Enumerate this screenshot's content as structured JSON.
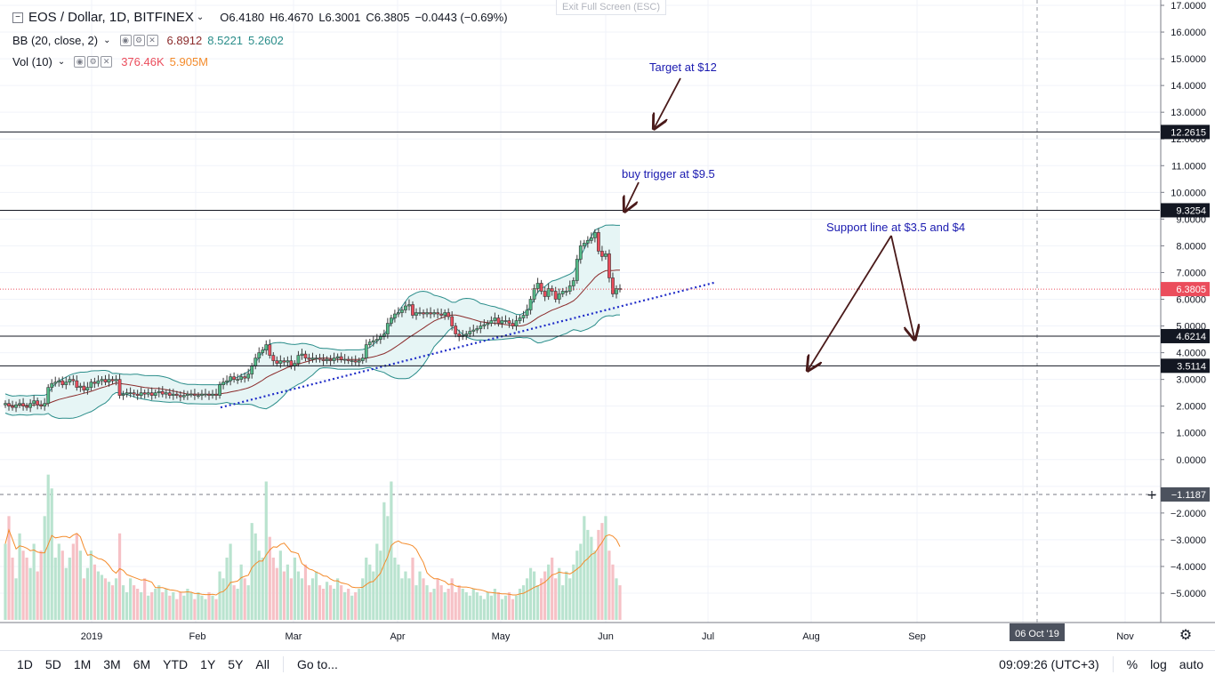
{
  "header": {
    "symbol_title": "EOS / Dollar, 1D, BITFINEX",
    "open": "O6.4180",
    "high": "H6.4670",
    "low": "L6.3001",
    "close": "C6.3805",
    "change": "−0.0443 (−0.69%)",
    "bb_label": "BB (20, close, 2)",
    "bb_values": [
      "6.8912",
      "8.5221",
      "5.2602"
    ],
    "vol_label": "Vol (10)",
    "vol_values": [
      "376.46K",
      "5.905M"
    ]
  },
  "exit_fullscreen": "Exit Full Screen (ESC)",
  "toolbar": {
    "ranges": [
      "1D",
      "5D",
      "1M",
      "3M",
      "6M",
      "YTD",
      "1Y",
      "5Y",
      "All"
    ],
    "goto": "Go to...",
    "clock": "09:09:26 (UTC+3)",
    "percent": "%",
    "log": "log",
    "auto": "auto"
  },
  "colors": {
    "up": "#53b987",
    "down": "#eb4d5c",
    "bb_fill": "#e6f5f5",
    "bb_band": "#2a8d8a",
    "bb_basis": "#8b2b2b",
    "trend": "#1f2cc8",
    "annotation": "#1a1ab0",
    "vol_ma": "#f48b2b"
  },
  "chart_data": {
    "type": "candlestick",
    "ylim": [
      -5.6,
      17.0
    ],
    "y_ticks": [
      "17.0000",
      "16.0000",
      "15.0000",
      "14.0000",
      "13.0000",
      "12.0000",
      "11.0000",
      "10.0000",
      "9.0000",
      "8.0000",
      "7.0000",
      "6.0000",
      "5.0000",
      "4.0000",
      "3.0000",
      "2.0000",
      "1.0000",
      "0.0000",
      "−2.0000",
      "−3.0000",
      "−4.0000",
      "−5.0000"
    ],
    "x_ticks": [
      "2019",
      "Feb",
      "Mar",
      "Apr",
      "May",
      "Jun",
      "Jul",
      "Aug",
      "Sep",
      "Nov"
    ],
    "x_highlight": "06 Oct '19",
    "crosshair_price": "−1.1187",
    "last_price": "6.3805",
    "levels": [
      {
        "label": "12.2615",
        "value": 12.26
      },
      {
        "label": "9.3254",
        "value": 9.33
      },
      {
        "label": "4.6214",
        "value": 4.62
      },
      {
        "label": "3.5114",
        "value": 3.51
      }
    ],
    "annotations": [
      "Target at $12",
      "buy trigger at $9.5",
      "Support line at $3.5 and $4"
    ],
    "closes": [
      2.1,
      2.0,
      1.95,
      2.05,
      2.1,
      2.0,
      1.95,
      2.1,
      2.2,
      2.05,
      2.0,
      2.1,
      2.7,
      2.85,
      2.9,
      2.95,
      2.8,
      2.9,
      3.0,
      2.95,
      2.7,
      2.75,
      2.6,
      2.7,
      2.9,
      2.85,
      2.95,
      3.0,
      2.9,
      3.0,
      2.95,
      3.0,
      2.4,
      2.45,
      2.5,
      2.5,
      2.45,
      2.4,
      2.5,
      2.45,
      2.5,
      2.4,
      2.5,
      2.55,
      2.45,
      2.5,
      2.4,
      2.45,
      2.4,
      2.35,
      2.4,
      2.45,
      2.45,
      2.4,
      2.4,
      2.45,
      2.45,
      2.4,
      2.45,
      2.4,
      2.8,
      2.9,
      2.95,
      3.1,
      3.0,
      3.0,
      3.1,
      3.05,
      3.2,
      3.5,
      3.8,
      4.0,
      4.1,
      4.3,
      3.9,
      3.7,
      3.6,
      3.7,
      3.65,
      3.7,
      3.5,
      3.6,
      3.9,
      3.95,
      3.8,
      3.75,
      3.8,
      3.8,
      3.75,
      3.7,
      3.75,
      3.7,
      3.8,
      3.85,
      3.75,
      3.75,
      3.7,
      3.7,
      3.65,
      3.7,
      3.8,
      4.3,
      4.4,
      4.45,
      4.5,
      4.6,
      4.7,
      5.1,
      5.3,
      5.45,
      5.5,
      5.6,
      5.75,
      5.8,
      5.4,
      5.5,
      5.5,
      5.45,
      5.5,
      5.45,
      5.5,
      5.45,
      5.4,
      5.5,
      5.35,
      5.0,
      4.7,
      4.6,
      4.65,
      4.7,
      4.8,
      4.85,
      4.9,
      5.0,
      5.05,
      5.1,
      5.2,
      5.3,
      5.1,
      5.2,
      5.2,
      5.1,
      5.0,
      5.2,
      5.3,
      5.4,
      5.6,
      6.0,
      6.4,
      6.6,
      6.3,
      6.1,
      6.4,
      6.3,
      6.0,
      6.2,
      6.3,
      6.3,
      6.5,
      6.7,
      7.5,
      8.0,
      8.1,
      8.2,
      8.3,
      8.5,
      7.8,
      7.6,
      7.7,
      6.8,
      6.2,
      6.4,
      6.38
    ],
    "volumes": [
      22,
      30,
      18,
      12,
      25,
      20,
      18,
      15,
      22,
      14,
      20,
      30,
      42,
      38,
      18,
      22,
      20,
      15,
      18,
      22,
      25,
      20,
      12,
      15,
      20,
      16,
      14,
      13,
      12,
      11,
      10,
      12,
      25,
      10,
      8,
      12,
      10,
      9,
      8,
      12,
      7,
      8,
      9,
      10,
      8,
      9,
      7,
      8,
      6,
      8,
      7,
      9,
      8,
      6,
      8,
      7,
      6,
      8,
      7,
      6,
      14,
      12,
      18,
      22,
      10,
      9,
      16,
      12,
      10,
      28,
      25,
      20,
      18,
      40,
      24,
      18,
      15,
      20,
      14,
      16,
      12,
      18,
      14,
      12,
      16,
      10,
      12,
      14,
      10,
      9,
      11,
      10,
      9,
      12,
      10,
      8,
      9,
      7,
      8,
      9,
      12,
      18,
      16,
      14,
      22,
      20,
      34,
      30,
      40,
      18,
      16,
      12,
      14,
      12,
      18,
      10,
      14,
      12,
      10,
      8,
      9,
      12,
      10,
      8,
      9,
      12,
      8,
      10,
      9,
      8,
      7,
      9,
      8,
      7,
      6,
      8,
      7,
      9,
      8,
      6,
      7,
      8,
      6,
      7,
      9,
      10,
      12,
      15,
      14,
      10,
      12,
      14,
      16,
      18,
      12,
      15,
      10,
      14,
      12,
      16,
      20,
      22,
      30,
      26,
      24,
      20,
      26,
      28,
      30,
      20,
      16,
      12,
      10
    ]
  }
}
